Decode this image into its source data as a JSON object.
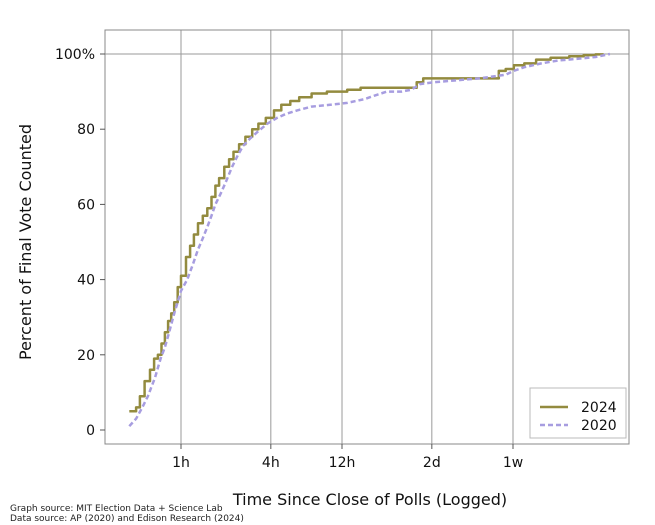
{
  "chart_data": {
    "type": "line",
    "title": "",
    "xlabel": "Time Since Close of Polls (Logged)",
    "ylabel": "Percent of Final Vote Counted",
    "xscale": "log",
    "x_unit": "hours",
    "ylim": [
      0,
      100
    ],
    "yticks": [
      {
        "value": 0,
        "label": "0"
      },
      {
        "value": 20,
        "label": "20"
      },
      {
        "value": 40,
        "label": "40"
      },
      {
        "value": 60,
        "label": "60"
      },
      {
        "value": 80,
        "label": "80"
      },
      {
        "value": 100,
        "label": "100%"
      }
    ],
    "xticks": [
      {
        "value": 1,
        "label": "1h"
      },
      {
        "value": 4,
        "label": "4h"
      },
      {
        "value": 12,
        "label": "12h"
      },
      {
        "value": 48,
        "label": "2d"
      },
      {
        "value": 168,
        "label": "1w"
      }
    ],
    "grid": "vertical at x ticks, horizontal at 100%",
    "legend_position": "bottom-right",
    "series": [
      {
        "name": "2024",
        "color": "#938b3f",
        "style": "solid-step",
        "points": [
          [
            0.45,
            5
          ],
          [
            0.5,
            6
          ],
          [
            0.53,
            9
          ],
          [
            0.57,
            13
          ],
          [
            0.62,
            16
          ],
          [
            0.66,
            19
          ],
          [
            0.7,
            20
          ],
          [
            0.74,
            23
          ],
          [
            0.78,
            26
          ],
          [
            0.82,
            29
          ],
          [
            0.86,
            31
          ],
          [
            0.9,
            34
          ],
          [
            0.95,
            38
          ],
          [
            1.0,
            41
          ],
          [
            1.08,
            46
          ],
          [
            1.15,
            49
          ],
          [
            1.22,
            52
          ],
          [
            1.3,
            55
          ],
          [
            1.4,
            57
          ],
          [
            1.5,
            59
          ],
          [
            1.6,
            62
          ],
          [
            1.7,
            65
          ],
          [
            1.8,
            67
          ],
          [
            1.95,
            70
          ],
          [
            2.1,
            72
          ],
          [
            2.25,
            74
          ],
          [
            2.45,
            76
          ],
          [
            2.7,
            78
          ],
          [
            3.0,
            80
          ],
          [
            3.3,
            81.5
          ],
          [
            3.7,
            83
          ],
          [
            4.2,
            85
          ],
          [
            4.7,
            86.5
          ],
          [
            5.4,
            87.5
          ],
          [
            6.2,
            88.5
          ],
          [
            7.5,
            89.5
          ],
          [
            9.5,
            90
          ],
          [
            13,
            90.5
          ],
          [
            16,
            91
          ],
          [
            23,
            91
          ],
          [
            34,
            91
          ],
          [
            38,
            92.5
          ],
          [
            42,
            93.5
          ],
          [
            60,
            93.5
          ],
          [
            90,
            93.5
          ],
          [
            132,
            93.5
          ],
          [
            135,
            95.5
          ],
          [
            150,
            96
          ],
          [
            170,
            97
          ],
          [
            200,
            97.5
          ],
          [
            240,
            98.5
          ],
          [
            300,
            99
          ],
          [
            400,
            99.4
          ],
          [
            500,
            99.7
          ],
          [
            600,
            99.9
          ],
          [
            680,
            100
          ]
        ]
      },
      {
        "name": "2020",
        "color": "#a79de0",
        "style": "dashed",
        "points": [
          [
            0.45,
            1
          ],
          [
            0.5,
            3
          ],
          [
            0.55,
            6
          ],
          [
            0.6,
            9
          ],
          [
            0.67,
            14
          ],
          [
            0.73,
            19
          ],
          [
            0.78,
            22
          ],
          [
            0.82,
            25
          ],
          [
            0.86,
            28
          ],
          [
            0.9,
            31
          ],
          [
            0.95,
            34
          ],
          [
            1.0,
            37
          ],
          [
            1.1,
            40
          ],
          [
            1.2,
            44
          ],
          [
            1.3,
            48
          ],
          [
            1.4,
            51
          ],
          [
            1.5,
            54
          ],
          [
            1.6,
            57
          ],
          [
            1.7,
            60
          ],
          [
            1.85,
            63
          ],
          [
            2.0,
            66
          ],
          [
            2.2,
            70
          ],
          [
            2.4,
            73
          ],
          [
            2.6,
            75.5
          ],
          [
            2.9,
            77.5
          ],
          [
            3.3,
            79.5
          ],
          [
            3.8,
            81.5
          ],
          [
            4.4,
            83
          ],
          [
            5.0,
            84
          ],
          [
            6.0,
            85
          ],
          [
            7.5,
            86
          ],
          [
            10,
            86.5
          ],
          [
            13,
            87
          ],
          [
            17,
            88
          ],
          [
            20,
            89
          ],
          [
            24,
            90
          ],
          [
            30,
            90
          ],
          [
            35,
            90.5
          ],
          [
            40,
            92
          ],
          [
            50,
            92.5
          ],
          [
            70,
            93
          ],
          [
            100,
            93.5
          ],
          [
            150,
            94.5
          ],
          [
            170,
            95.5
          ],
          [
            200,
            96.5
          ],
          [
            260,
            97.5
          ],
          [
            340,
            98.3
          ],
          [
            450,
            98.7
          ],
          [
            600,
            99.2
          ],
          [
            750,
            100
          ]
        ]
      }
    ]
  },
  "source_line1": "Graph source: MIT Election Data + Science Lab",
  "source_line2": "Data source: AP (2020) and Edison Research (2024)"
}
